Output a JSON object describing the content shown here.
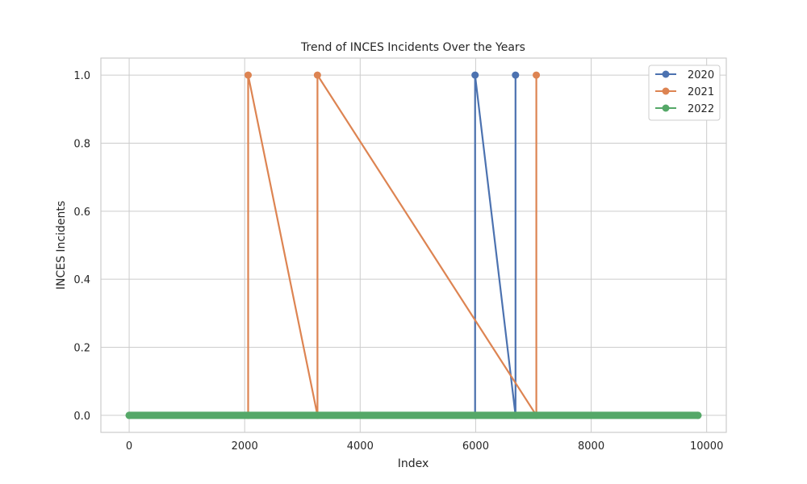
{
  "chart_data": {
    "type": "line",
    "title": "Trend of INCES Incidents Over the Years",
    "xlabel": "Index",
    "ylabel": "INCES Incidents",
    "xlim": [
      -490,
      10340
    ],
    "ylim": [
      -0.05,
      1.05
    ],
    "xticks": [
      0,
      2000,
      4000,
      6000,
      8000,
      10000
    ],
    "yticks": [
      0.0,
      0.2,
      0.4,
      0.6,
      0.8,
      1.0
    ],
    "xtick_labels": [
      "0",
      "2000",
      "4000",
      "6000",
      "8000",
      "10000"
    ],
    "ytick_labels": [
      "0.0",
      "0.2",
      "0.4",
      "0.6",
      "0.8",
      "1.0"
    ],
    "grid": true,
    "legend_position": "top-right",
    "baseline_range": [
      0,
      9850
    ],
    "series": [
      {
        "name": "2020",
        "color": "#4c72b0",
        "points": [
          [
            5990,
            0
          ],
          [
            5990,
            1
          ],
          [
            6690,
            0
          ],
          [
            6690,
            1
          ]
        ]
      },
      {
        "name": "2021",
        "color": "#dd8452",
        "points": [
          [
            2060,
            0
          ],
          [
            2060,
            1
          ],
          [
            3260,
            0
          ],
          [
            3260,
            1
          ],
          [
            7050,
            0
          ],
          [
            7050,
            1
          ]
        ]
      },
      {
        "name": "2022",
        "color": "#55a868",
        "points": [
          [
            0,
            0
          ],
          [
            9850,
            0
          ]
        ]
      }
    ]
  }
}
